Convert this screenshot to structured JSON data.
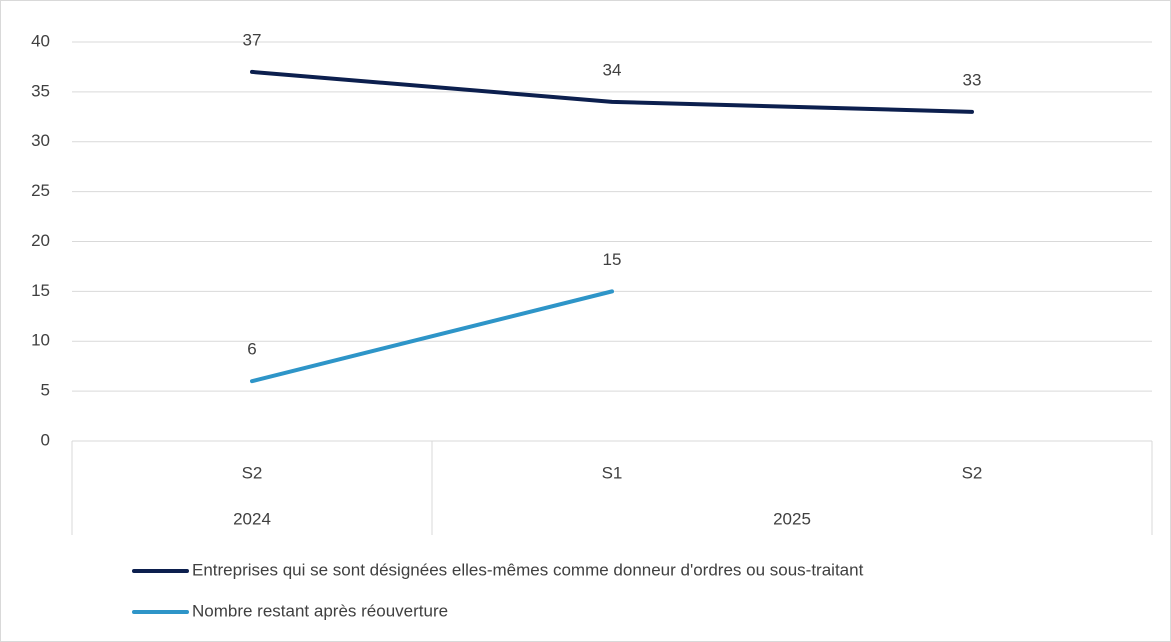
{
  "chart_data": {
    "type": "line",
    "categories": [
      "S2",
      "S1",
      "S2"
    ],
    "category_groups": [
      "2024",
      "2025",
      "2025"
    ],
    "series": [
      {
        "name": "Entreprises qui se sont désignées elles-mêmes comme donneur d'ordres ou sous-traitant",
        "color": "#0c1f4e",
        "values": [
          37,
          34,
          33
        ]
      },
      {
        "name": "Nombre restant après réouverture",
        "color": "#2e95c8",
        "values": [
          6,
          15,
          null
        ]
      }
    ],
    "ylim": [
      0,
      40
    ],
    "yticks": [
      0,
      5,
      10,
      15,
      20,
      25,
      30,
      35,
      40
    ],
    "grid": true,
    "data_labels": true,
    "legend": "bottom"
  }
}
